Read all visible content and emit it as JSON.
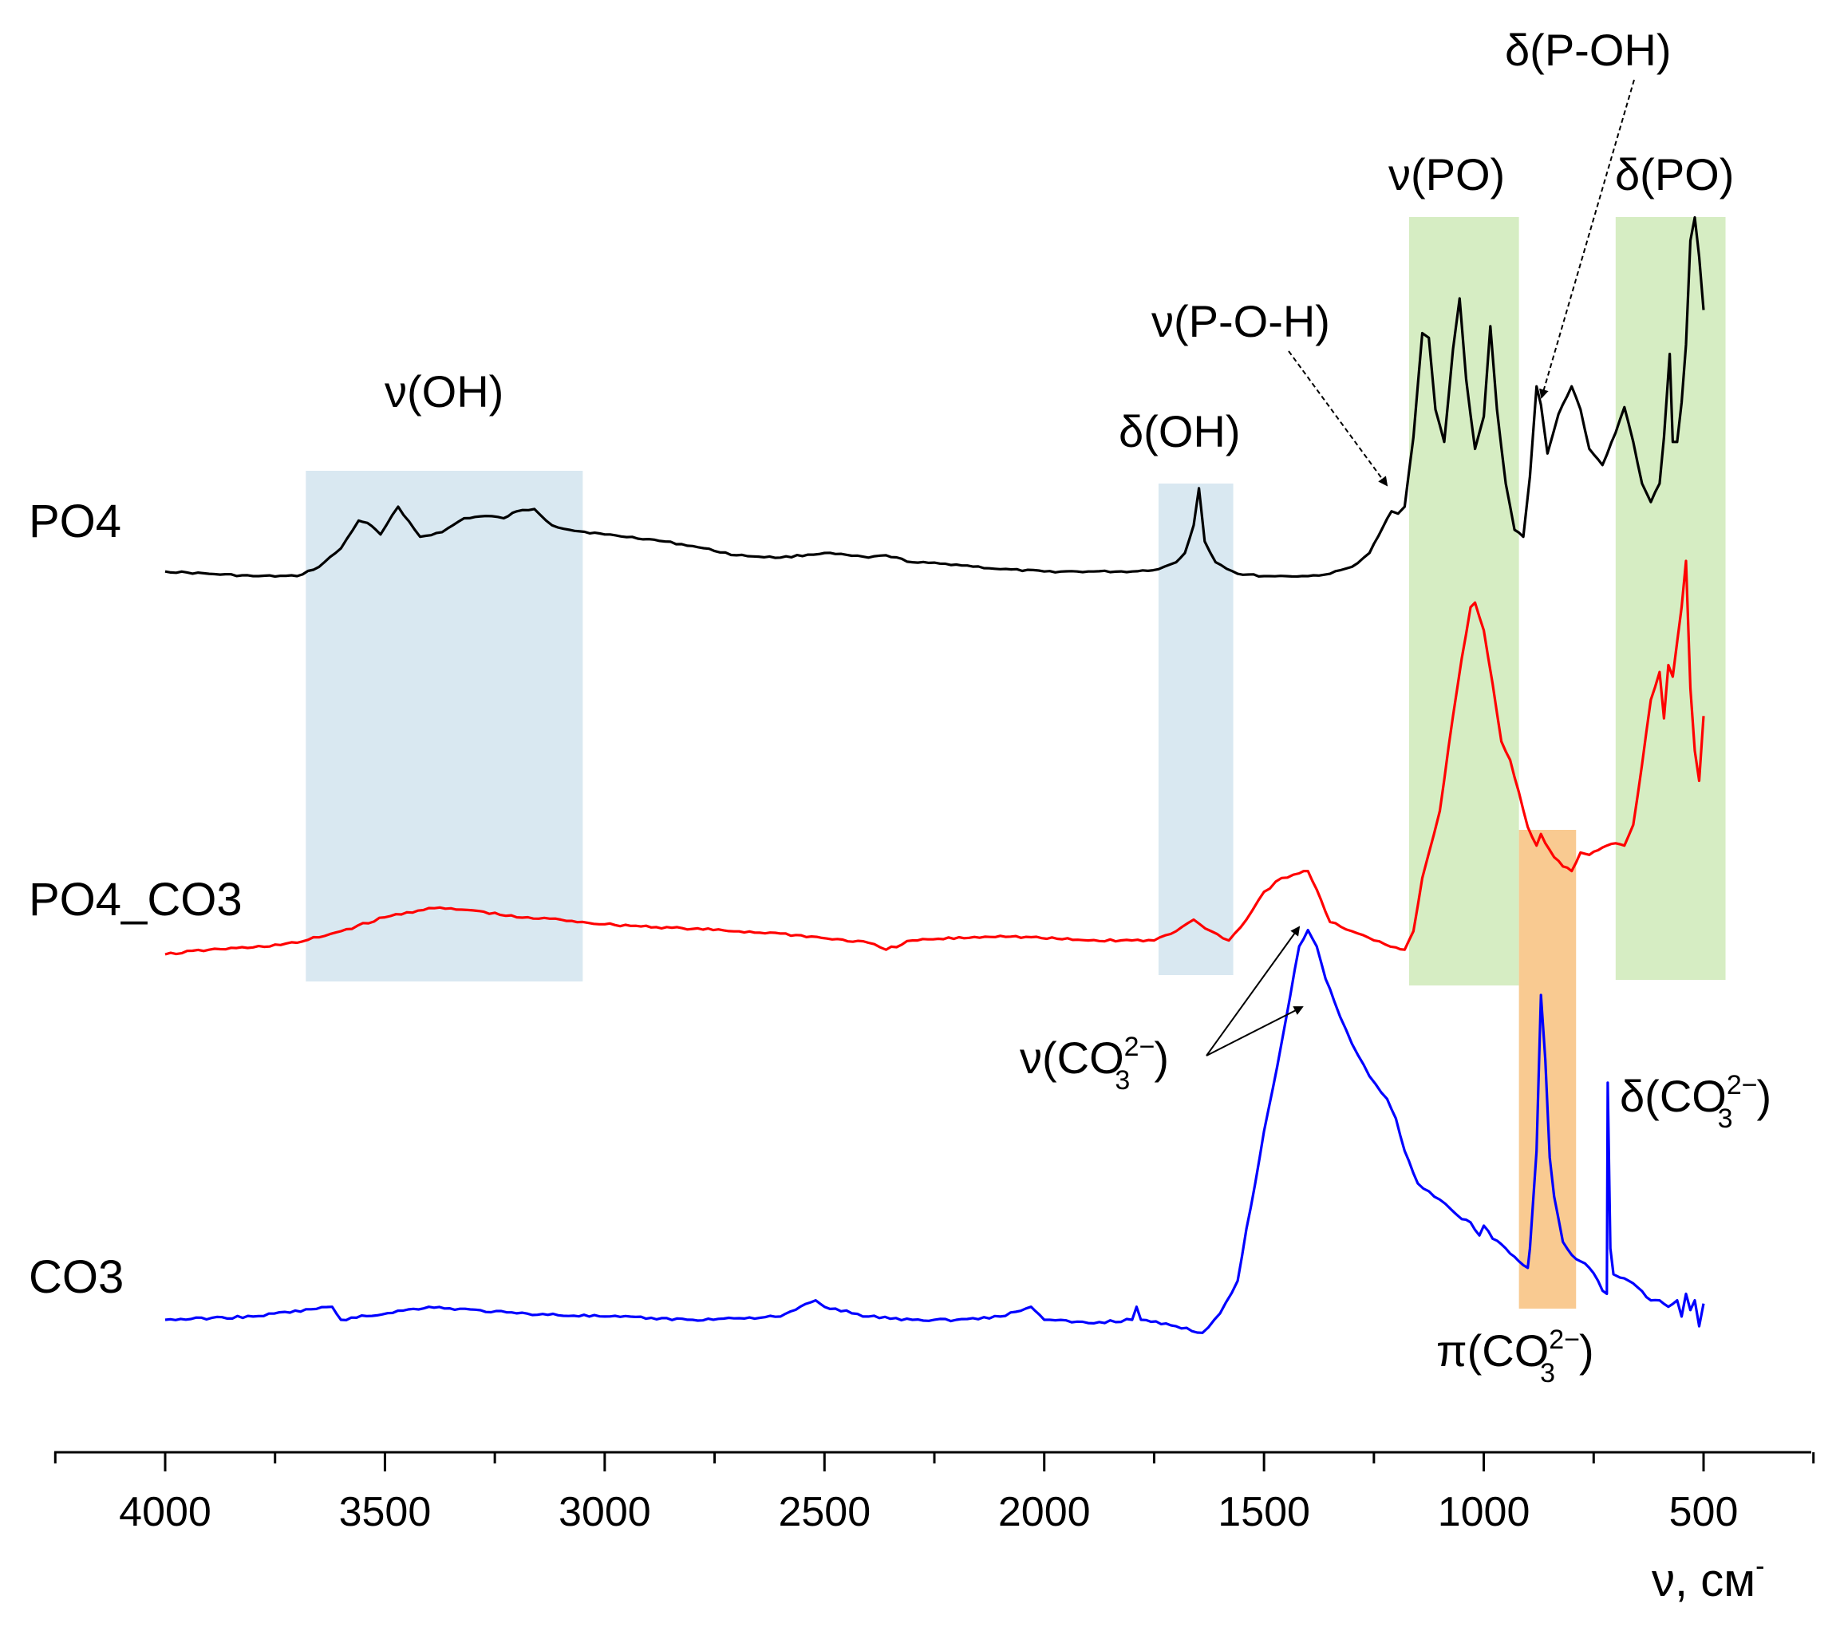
{
  "chart_data": {
    "type": "line",
    "xlabel": "ν, см",
    "xlabel_sup": "-",
    "x_reversed": true,
    "xlim": [
      4250,
      250
    ],
    "x_ticks": [
      4000,
      3500,
      3000,
      2500,
      2000,
      1500,
      1000,
      500
    ],
    "x_tick_labels": [
      "4000",
      "3500",
      "3000",
      "2500",
      "2000",
      "1500",
      "1000",
      "500"
    ],
    "grid": false,
    "series": [
      {
        "name": "PO4",
        "color": "#000000",
        "x": [
          4000,
          3900,
          3800,
          3700,
          3650,
          3600,
          3560,
          3540,
          3510,
          3470,
          3420,
          3370,
          3320,
          3270,
          3230,
          3200,
          3160,
          3120,
          3080,
          3000,
          2900,
          2800,
          2700,
          2600,
          2500,
          2400,
          2360,
          2300,
          2200,
          2100,
          2000,
          1900,
          1800,
          1740,
          1700,
          1680,
          1660,
          1648,
          1635,
          1610,
          1560,
          1500,
          1450,
          1400,
          1350,
          1300,
          1260,
          1230,
          1210,
          1195,
          1180,
          1160,
          1140,
          1125,
          1110,
          1090,
          1070,
          1055,
          1040,
          1020,
          1000,
          985,
          970,
          950,
          930,
          910,
          895,
          880,
          870,
          855,
          830,
          800,
          780,
          760,
          730,
          700,
          680,
          660,
          640,
          620,
          600,
          590,
          577,
          570,
          560,
          550,
          540,
          530,
          520,
          510,
          500
        ],
        "y": [
          0.02,
          0.01,
          0.0,
          0.0,
          0.04,
          0.12,
          0.24,
          0.23,
          0.18,
          0.3,
          0.17,
          0.19,
          0.25,
          0.26,
          0.25,
          0.28,
          0.29,
          0.22,
          0.2,
          0.18,
          0.16,
          0.13,
          0.09,
          0.08,
          0.1,
          0.08,
          0.09,
          0.06,
          0.05,
          0.03,
          0.02,
          0.02,
          0.02,
          0.03,
          0.06,
          0.1,
          0.22,
          0.38,
          0.15,
          0.06,
          0.01,
          0.0,
          0.0,
          0.0,
          0.01,
          0.04,
          0.1,
          0.21,
          0.28,
          0.27,
          0.3,
          0.6,
          1.05,
          1.03,
          0.72,
          0.58,
          0.98,
          1.2,
          0.85,
          0.55,
          0.69,
          1.08,
          0.72,
          0.4,
          0.2,
          0.17,
          0.43,
          0.82,
          0.74,
          0.53,
          0.7,
          0.82,
          0.72,
          0.55,
          0.48,
          0.62,
          0.73,
          0.58,
          0.4,
          0.32,
          0.4,
          0.6,
          0.96,
          0.58,
          0.58,
          0.75,
          1.0,
          1.45,
          1.55,
          1.38,
          1.15
        ]
      },
      {
        "name": "PO4_CO3",
        "color": "#ff0000",
        "x": [
          4000,
          3900,
          3800,
          3700,
          3600,
          3500,
          3400,
          3300,
          3200,
          3100,
          3000,
          2800,
          2600,
          2400,
          2360,
          2300,
          2100,
          1900,
          1800,
          1750,
          1700,
          1660,
          1620,
          1580,
          1540,
          1500,
          1460,
          1420,
          1400,
          1380,
          1350,
          1300,
          1250,
          1200,
          1180,
          1160,
          1140,
          1100,
          1070,
          1050,
          1030,
          1020,
          1000,
          980,
          960,
          940,
          920,
          900,
          880,
          870,
          860,
          840,
          820,
          800,
          780,
          760,
          740,
          720,
          700,
          680,
          660,
          640,
          620,
          600,
          590,
          580,
          570,
          560,
          550,
          540,
          530,
          520,
          510,
          500
        ],
        "y": [
          0.0,
          0.02,
          0.03,
          0.05,
          0.1,
          0.16,
          0.2,
          0.19,
          0.16,
          0.15,
          0.13,
          0.11,
          0.09,
          0.05,
          0.02,
          0.06,
          0.08,
          0.06,
          0.06,
          0.06,
          0.1,
          0.15,
          0.1,
          0.06,
          0.15,
          0.27,
          0.33,
          0.35,
          0.36,
          0.28,
          0.14,
          0.1,
          0.06,
          0.03,
          0.02,
          0.1,
          0.33,
          0.62,
          1.03,
          1.28,
          1.5,
          1.52,
          1.4,
          1.17,
          0.92,
          0.84,
          0.7,
          0.55,
          0.47,
          0.52,
          0.48,
          0.42,
          0.38,
          0.36,
          0.44,
          0.43,
          0.45,
          0.47,
          0.48,
          0.47,
          0.56,
          0.82,
          1.1,
          1.22,
          1.02,
          1.25,
          1.2,
          1.35,
          1.5,
          1.7,
          1.15,
          0.88,
          0.75,
          1.03
        ]
      },
      {
        "name": "CO3",
        "color": "#0000ff",
        "x": [
          4000,
          3800,
          3620,
          3600,
          3400,
          3200,
          3000,
          2800,
          2600,
          2520,
          2500,
          2400,
          2300,
          2200,
          2100,
          2030,
          2000,
          1900,
          1800,
          1790,
          1780,
          1700,
          1640,
          1600,
          1560,
          1540,
          1520,
          1500,
          1470,
          1440,
          1420,
          1400,
          1380,
          1360,
          1340,
          1300,
          1260,
          1220,
          1200,
          1180,
          1150,
          1100,
          1050,
          1030,
          1010,
          1000,
          980,
          950,
          920,
          900,
          895,
          880,
          870,
          860,
          850,
          840,
          820,
          800,
          780,
          760,
          740,
          730,
          720,
          718,
          712,
          705,
          690,
          670,
          650,
          620,
          600,
          580,
          560,
          550,
          540,
          530,
          520,
          510,
          500
        ],
        "y": [
          0.0,
          0.01,
          0.04,
          0.0,
          0.04,
          0.02,
          0.01,
          0.0,
          0.01,
          0.06,
          0.04,
          0.01,
          0.0,
          0.0,
          0.01,
          0.04,
          0.0,
          -0.01,
          0.0,
          0.04,
          0.0,
          -0.02,
          -0.04,
          0.02,
          0.12,
          0.28,
          0.42,
          0.58,
          0.78,
          1.0,
          1.15,
          1.2,
          1.15,
          1.05,
          0.98,
          0.85,
          0.75,
          0.68,
          0.62,
          0.52,
          0.42,
          0.37,
          0.31,
          0.3,
          0.26,
          0.29,
          0.25,
          0.22,
          0.18,
          0.16,
          0.22,
          0.52,
          1.0,
          0.8,
          0.5,
          0.38,
          0.24,
          0.2,
          0.18,
          0.16,
          0.12,
          0.09,
          0.08,
          0.73,
          0.22,
          0.14,
          0.13,
          0.12,
          0.1,
          0.06,
          0.06,
          0.04,
          0.06,
          0.01,
          0.08,
          0.03,
          0.06,
          -0.02,
          0.05
        ]
      }
    ],
    "shaded_regions": [
      {
        "x_from": 3680,
        "x_to": 3050,
        "color": "#d9e8f1",
        "rows": "PO4, PO4_CO3"
      },
      {
        "x_from": 1740,
        "x_to": 1570,
        "color": "#d9e8f1",
        "rows": "PO4, PO4_CO3"
      },
      {
        "x_from": 1170,
        "x_to": 920,
        "color": "#d6edc3",
        "rows": "PO4, PO4_CO3"
      },
      {
        "x_from": 700,
        "x_to": 450,
        "color": "#d6edc3",
        "rows": "PO4, PO4_CO3"
      },
      {
        "x_from": 920,
        "x_to": 790,
        "color": "#f9ca91",
        "rows": "PO4_CO3, CO3"
      }
    ],
    "annotations": [
      {
        "id": "nu_oh",
        "text": "ν(OH)"
      },
      {
        "id": "delta_oh",
        "text": "δ(OH)"
      },
      {
        "id": "nu_poh",
        "text": "ν(P-O-H)"
      },
      {
        "id": "nu_po",
        "text": "ν(PO)"
      },
      {
        "id": "delta_p_oh",
        "text": "δ(P-OH)"
      },
      {
        "id": "delta_po",
        "text": "δ(PO)"
      },
      {
        "id": "nu_co3",
        "text": "ν(CO",
        "sub": "3",
        "sup": "2−",
        "tail": ")"
      },
      {
        "id": "delta_co3",
        "text": "δ(CO",
        "sub": "3",
        "sup": "2−",
        "tail": ")"
      },
      {
        "id": "pi_co3",
        "text": "π(CO",
        "sub": "3",
        "sup": "2−",
        "tail": ")"
      }
    ]
  }
}
